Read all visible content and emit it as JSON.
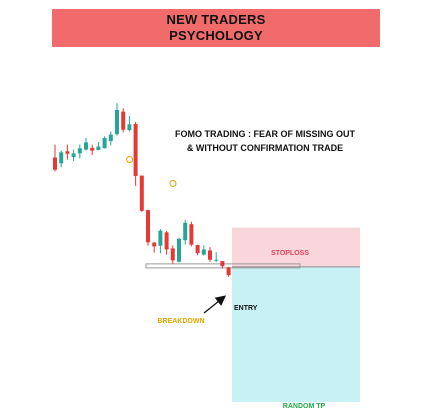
{
  "header": {
    "line1": "NEW TRADERS",
    "line2": "PSYCHOLOGY"
  },
  "headline": {
    "line1": "FOMO TRADING : FEAR OF MISSING OUT",
    "line2": "& WITHOUT CONFIRMATION TRADE"
  },
  "colors": {
    "header_bg": "#f26b6b",
    "bull": "#26a69a",
    "bear": "#e53935",
    "stoploss_zone": "#f9d6dc",
    "tp_zone": "#c8f1f5",
    "breakdown_text": "#e2a400",
    "random_tp_text": "#22a84a",
    "stoploss_text": "#e0435b"
  },
  "labels": {
    "stoploss": "STOPLOSS",
    "entry": "ENTRY",
    "breakdown": "BREAKDOWN",
    "random_tp": "RANDOM TP"
  },
  "chart_data": {
    "type": "candlestick",
    "ylim": [
      0,
      100
    ],
    "candles": [
      {
        "o": 71.5,
        "h": 75.3,
        "l": 67.4,
        "c": 67.9
      },
      {
        "o": 69.8,
        "h": 73.5,
        "l": 68.6,
        "c": 73.0
      },
      {
        "o": 73.3,
        "h": 75.3,
        "l": 70.9,
        "c": 72.6
      },
      {
        "o": 71.6,
        "h": 73.8,
        "l": 70.4,
        "c": 72.7
      },
      {
        "o": 72.7,
        "h": 75.3,
        "l": 71.2,
        "c": 74.2
      },
      {
        "o": 73.8,
        "h": 77.2,
        "l": 73.5,
        "c": 75.9
      },
      {
        "o": 74.3,
        "h": 75.2,
        "l": 72.2,
        "c": 73.5
      },
      {
        "o": 73.7,
        "h": 76.0,
        "l": 73.6,
        "c": 74.7
      },
      {
        "o": 74.2,
        "h": 77.7,
        "l": 74.1,
        "c": 77.2
      },
      {
        "o": 76.3,
        "h": 79.1,
        "l": 75.0,
        "c": 78.2
      },
      {
        "o": 78.3,
        "h": 87.4,
        "l": 77.9,
        "c": 85.4
      },
      {
        "o": 84.9,
        "h": 85.9,
        "l": 78.8,
        "c": 79.6
      },
      {
        "o": 79.5,
        "h": 83.6,
        "l": 79.1,
        "c": 81.2
      },
      {
        "o": 81.3,
        "h": 81.9,
        "l": 63.2,
        "c": 66.1
      },
      {
        "o": 66.2,
        "h": 66.2,
        "l": 55.6,
        "c": 55.9
      },
      {
        "o": 56.1,
        "h": 56.3,
        "l": 45.7,
        "c": 46.7
      },
      {
        "o": 46.6,
        "h": 46.8,
        "l": 43.7,
        "c": 45.5
      },
      {
        "o": 45.7,
        "h": 50.6,
        "l": 43.5,
        "c": 50.1
      },
      {
        "o": 49.6,
        "h": 50.0,
        "l": 43.1,
        "c": 44.6
      },
      {
        "o": 44.9,
        "h": 45.8,
        "l": 40.4,
        "c": 41.4
      },
      {
        "o": 41.0,
        "h": 48.0,
        "l": 40.8,
        "c": 47.7
      },
      {
        "o": 47.3,
        "h": 53.3,
        "l": 46.0,
        "c": 52.4
      },
      {
        "o": 52.0,
        "h": 52.7,
        "l": 45.5,
        "c": 46.0
      },
      {
        "o": 45.9,
        "h": 46.0,
        "l": 42.9,
        "c": 43.5
      },
      {
        "o": 43.1,
        "h": 45.8,
        "l": 42.8,
        "c": 44.6
      },
      {
        "o": 44.3,
        "h": 45.3,
        "l": 41.0,
        "c": 41.6
      },
      {
        "o": 41.4,
        "h": 43.8,
        "l": 40.9,
        "c": 41.6
      },
      {
        "o": 41.2,
        "h": 41.2,
        "l": 39.0,
        "c": 39.7
      },
      {
        "o": 39.4,
        "h": 39.5,
        "l": 36.6,
        "c": 37.1
      }
    ],
    "markers": [
      {
        "candle": 13,
        "price": 70.9
      },
      {
        "candle": 20,
        "price": 63.9
      }
    ],
    "breakdown_level": 39.8,
    "entry_price": 39.5,
    "stoploss_price": 51.0,
    "tp_price": 0
  }
}
